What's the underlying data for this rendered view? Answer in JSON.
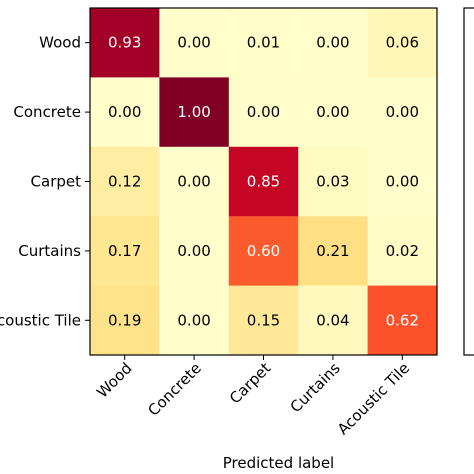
{
  "chart_data": {
    "type": "heatmap",
    "rows": [
      "Wood",
      "Concrete",
      "Carpet",
      "Curtains",
      "Acoustic Tile"
    ],
    "columns": [
      "Wood",
      "Concrete",
      "Carpet",
      "Curtains",
      "Acoustic Tile"
    ],
    "values": [
      [
        0.93,
        0.0,
        0.01,
        0.0,
        0.06
      ],
      [
        0.0,
        1.0,
        0.0,
        0.0,
        0.0
      ],
      [
        0.12,
        0.0,
        0.85,
        0.03,
        0.0
      ],
      [
        0.17,
        0.0,
        0.6,
        0.21,
        0.02
      ],
      [
        0.19,
        0.0,
        0.15,
        0.04,
        0.62
      ]
    ],
    "value_labels": [
      [
        "0.93",
        "0.00",
        "0.01",
        "0.00",
        "0.06"
      ],
      [
        "0.00",
        "1.00",
        "0.00",
        "0.00",
        "0.00"
      ],
      [
        "0.12",
        "0.00",
        "0.85",
        "0.03",
        "0.00"
      ],
      [
        "0.17",
        "0.00",
        "0.60",
        "0.21",
        "0.02"
      ],
      [
        "0.19",
        "0.00",
        "0.15",
        "0.04",
        "0.62"
      ]
    ],
    "xlabel": "Predicted label",
    "ylabel": "",
    "colormap": "YlOrRd",
    "vmin": 0,
    "vmax": 1,
    "colorbar": true
  },
  "colors": {
    "text_dark": "#000000",
    "text_light": "#ffffff",
    "frame": "#000000"
  }
}
